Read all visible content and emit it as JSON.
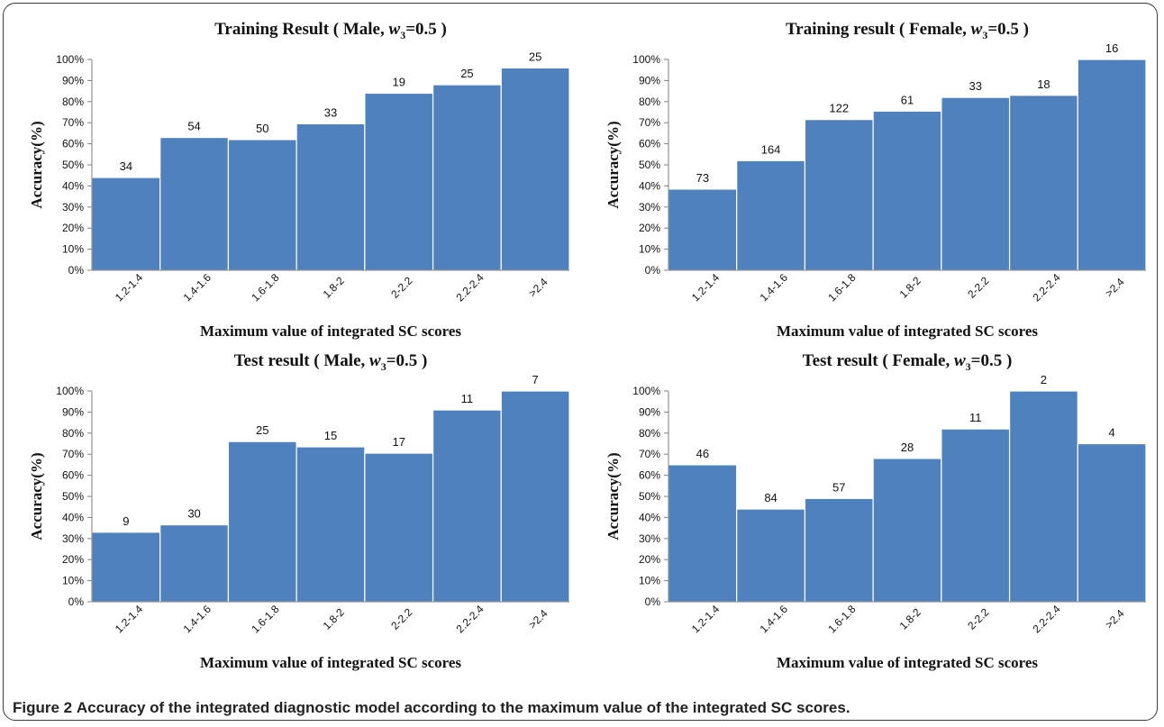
{
  "caption": {
    "label": "Figure 2",
    "text": "Accuracy of the integrated diagnostic model according to the maximum value of the integrated SC scores."
  },
  "colors": {
    "bar": "#4f81bd",
    "bar_edge": "#ffffff",
    "axis": "#7f7f7f"
  },
  "chart_data": [
    {
      "type": "bar",
      "title_main": "Training Result ( Male, ",
      "title_var": "w",
      "title_sub": "3",
      "title_tail": "=0.5 )",
      "xlabel": "Maximum value of integrated SC scores",
      "ylabel": "Accuracy(%)",
      "ylim": [
        0,
        100
      ],
      "yticks": [
        "0%",
        "10%",
        "20%",
        "30%",
        "40%",
        "50%",
        "60%",
        "70%",
        "80%",
        "90%",
        "100%"
      ],
      "categories": [
        "1.2-1.4",
        "1.4-1.6",
        "1.6-1.8",
        "1.8-2",
        "2-2.2",
        "2.2-2.4",
        ">2.4"
      ],
      "values": [
        44,
        63,
        62,
        69.5,
        84,
        88,
        96
      ],
      "labels": [
        "34",
        "54",
        "50",
        "33",
        "19",
        "25",
        "25"
      ]
    },
    {
      "type": "bar",
      "title_main": "Training result ( Female, ",
      "title_var": "w",
      "title_sub": "3",
      "title_tail": "=0.5 )",
      "xlabel": "Maximum value of integrated SC scores",
      "ylabel": "Accuracy(%)",
      "ylim": [
        0,
        100
      ],
      "yticks": [
        "0%",
        "10%",
        "20%",
        "30%",
        "40%",
        "50%",
        "60%",
        "70%",
        "80%",
        "90%",
        "100%"
      ],
      "categories": [
        "1.2-1.4",
        "1.4-1.6",
        "1.6-1.8",
        "1.8-2",
        "2-2.2",
        "2.2-2.4",
        ">2.4"
      ],
      "values": [
        38.5,
        52,
        71.5,
        75.5,
        82,
        83,
        100
      ],
      "labels": [
        "73",
        "164",
        "122",
        "61",
        "33",
        "18",
        "16"
      ]
    },
    {
      "type": "bar",
      "title_main": "Test result ( Male, ",
      "title_var": "w",
      "title_sub": "3",
      "title_tail": "=0.5 )",
      "xlabel": "Maximum value of integrated SC scores",
      "ylabel": "Accuracy(%)",
      "ylim": [
        0,
        100
      ],
      "yticks": [
        "0%",
        "10%",
        "20%",
        "30%",
        "40%",
        "50%",
        "60%",
        "70%",
        "80%",
        "90%",
        "100%"
      ],
      "categories": [
        "1.2-1.4",
        "1.4-1.6",
        "1.6-1.8",
        "1.8-2",
        "2-2.2",
        "2.2-2.4",
        ">2.4"
      ],
      "values": [
        33,
        36.5,
        76,
        73.5,
        70.5,
        91,
        100
      ],
      "labels": [
        "9",
        "30",
        "25",
        "15",
        "17",
        "11",
        "7"
      ]
    },
    {
      "type": "bar",
      "title_main": "Test result ( Female, ",
      "title_var": "w",
      "title_sub": "3",
      "title_tail": "=0.5 )",
      "xlabel": "Maximum value of integrated SC scores",
      "ylabel": "Accuracy(%)",
      "ylim": [
        0,
        100
      ],
      "yticks": [
        "0%",
        "10%",
        "20%",
        "30%",
        "40%",
        "50%",
        "60%",
        "70%",
        "80%",
        "90%",
        "100%"
      ],
      "categories": [
        "1.2-1.4",
        "1.4-1.6",
        "1.6-1.8",
        "1.8-2",
        "2-2.2",
        "2.2-2.4",
        ">2.4"
      ],
      "values": [
        65,
        44,
        49,
        68,
        82,
        100,
        75
      ],
      "labels": [
        "46",
        "84",
        "57",
        "28",
        "11",
        "2",
        "4"
      ]
    }
  ]
}
